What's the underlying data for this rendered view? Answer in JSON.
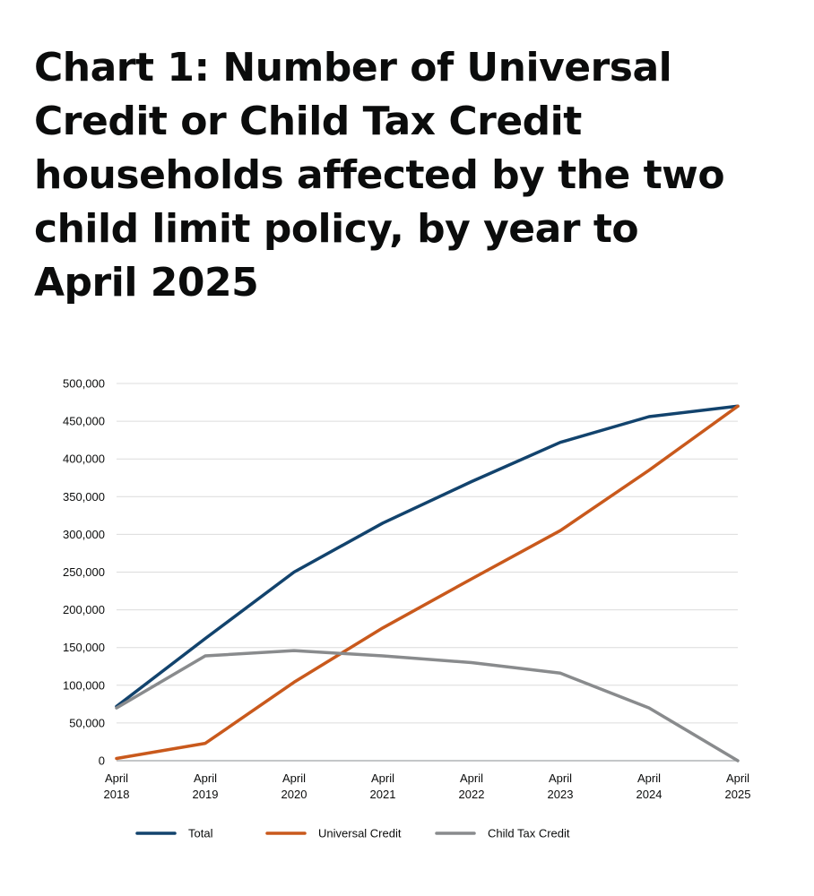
{
  "page": {
    "title": "Chart 1: Number of Universal Credit or Child Tax Credit households affected by the two child limit policy, by year to April 2025"
  },
  "chart_data": {
    "type": "line",
    "title": "Chart 1: Number of Universal Credit or Child Tax Credit households affected by the two child limit policy, by year to April 2025",
    "xlabel": "",
    "ylabel": "",
    "categories": [
      [
        "April",
        "2018"
      ],
      [
        "April",
        "2019"
      ],
      [
        "April",
        "2020"
      ],
      [
        "April",
        "2021"
      ],
      [
        "April",
        "2022"
      ],
      [
        "April",
        "2023"
      ],
      [
        "April",
        "2024"
      ],
      [
        "April",
        "2025"
      ]
    ],
    "ylim": [
      0,
      500000
    ],
    "yticks": [
      0,
      50000,
      100000,
      150000,
      200000,
      250000,
      300000,
      350000,
      400000,
      450000,
      500000
    ],
    "ytick_labels": [
      "0",
      "50,000",
      "100,000",
      "150,000",
      "200,000",
      "250,000",
      "300,000",
      "350,000",
      "400,000",
      "450,000",
      "500,000"
    ],
    "grid": true,
    "legend_position": "bottom",
    "series": [
      {
        "name": "Total",
        "color": "#12436d",
        "values": [
          72000,
          162000,
          250000,
          315000,
          370000,
          422000,
          456000,
          470000
        ]
      },
      {
        "name": "Universal Credit",
        "color": "#c9591c",
        "values": [
          3000,
          23000,
          104000,
          176000,
          241000,
          305000,
          385000,
          470000
        ]
      },
      {
        "name": "Child Tax Credit",
        "color": "#898b8d",
        "values": [
          70000,
          139000,
          146000,
          139000,
          130000,
          116000,
          70000,
          0
        ]
      }
    ]
  }
}
